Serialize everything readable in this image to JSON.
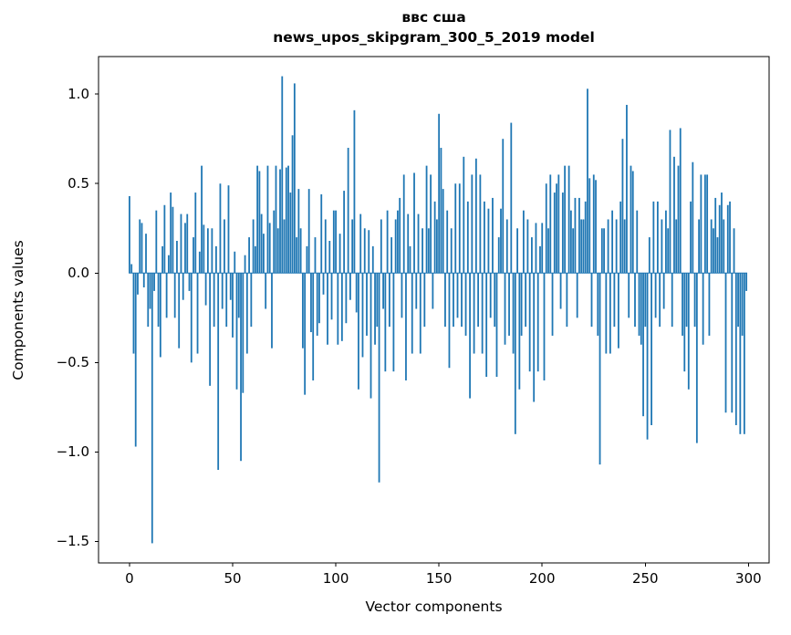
{
  "figure": {
    "title_line1": "ввс сша",
    "title_line2": "news_upos_skipgram_300_5_2019 model",
    "xlabel": "Vector components",
    "ylabel": "Components values"
  },
  "chart_data": {
    "type": "bar",
    "title": "ввс сша — news_upos_skipgram_300_5_2019 model",
    "xlabel": "Vector components",
    "ylabel": "Components values",
    "bar_color": "#1f77b4",
    "axis_color": "#000000",
    "xlim": [
      -15,
      310
    ],
    "ylim": [
      -1.62,
      1.21
    ],
    "x_ticks": [
      0,
      50,
      100,
      150,
      200,
      250,
      300
    ],
    "y_ticks": [
      1.0,
      0.5,
      0.0,
      -0.5,
      -1.0,
      -1.5
    ],
    "grid": false,
    "legend": false,
    "zero_line": true,
    "n_components": 300,
    "values": [
      0.43,
      0.05,
      -0.45,
      -0.97,
      -0.12,
      0.3,
      0.28,
      -0.08,
      0.22,
      -0.3,
      -0.2,
      -1.51,
      -0.1,
      0.35,
      -0.3,
      -0.47,
      0.15,
      0.38,
      -0.25,
      0.1,
      0.45,
      0.37,
      -0.25,
      0.18,
      -0.42,
      0.33,
      -0.15,
      0.28,
      0.33,
      -0.1,
      -0.5,
      0.2,
      0.45,
      -0.45,
      0.12,
      0.6,
      0.27,
      -0.18,
      0.25,
      -0.63,
      0.25,
      -0.3,
      0.15,
      -1.1,
      0.5,
      -0.2,
      0.3,
      -0.3,
      0.49,
      -0.15,
      -0.36,
      0.12,
      -0.65,
      -0.25,
      -1.05,
      -0.67,
      0.1,
      -0.45,
      0.2,
      -0.3,
      0.3,
      0.15,
      0.6,
      0.57,
      0.33,
      0.22,
      -0.2,
      0.6,
      0.28,
      -0.42,
      0.35,
      0.6,
      0.25,
      0.58,
      1.1,
      0.3,
      0.59,
      0.6,
      0.45,
      0.77,
      1.06,
      0.2,
      0.47,
      0.25,
      -0.42,
      -0.68,
      0.15,
      0.47,
      -0.33,
      -0.6,
      0.2,
      -0.35,
      -0.28,
      0.44,
      -0.12,
      0.3,
      -0.4,
      0.18,
      -0.26,
      0.35,
      0.35,
      -0.4,
      0.22,
      -0.38,
      0.46,
      -0.28,
      0.7,
      -0.15,
      0.3,
      0.91,
      -0.22,
      -0.65,
      0.33,
      -0.47,
      0.25,
      -0.35,
      0.24,
      -0.7,
      0.15,
      -0.4,
      -0.3,
      -1.17,
      0.3,
      -0.2,
      -0.55,
      0.35,
      -0.3,
      0.2,
      -0.55,
      0.3,
      0.35,
      0.42,
      -0.25,
      0.55,
      -0.6,
      0.33,
      0.15,
      -0.45,
      0.56,
      -0.2,
      0.33,
      -0.45,
      0.25,
      -0.3,
      0.6,
      0.25,
      0.55,
      -0.2,
      0.4,
      0.3,
      0.89,
      0.7,
      0.47,
      -0.3,
      0.35,
      -0.53,
      0.25,
      -0.3,
      0.5,
      -0.25,
      0.5,
      -0.3,
      0.65,
      -0.35,
      0.4,
      -0.7,
      0.55,
      -0.45,
      0.64,
      -0.3,
      0.55,
      -0.45,
      0.4,
      -0.58,
      0.36,
      -0.25,
      0.42,
      -0.3,
      -0.58,
      0.2,
      0.36,
      0.75,
      -0.4,
      0.3,
      -0.35,
      0.84,
      -0.45,
      -0.9,
      0.25,
      -0.65,
      -0.35,
      0.35,
      -0.3,
      0.3,
      -0.55,
      0.2,
      -0.72,
      0.28,
      -0.55,
      0.15,
      0.28,
      -0.6,
      0.5,
      0.25,
      0.55,
      -0.35,
      0.45,
      0.5,
      0.55,
      -0.2,
      0.45,
      0.6,
      -0.3,
      0.6,
      0.35,
      0.25,
      0.42,
      -0.25,
      0.42,
      0.3,
      0.3,
      0.4,
      1.03,
      0.53,
      -0.3,
      0.55,
      0.52,
      -0.35,
      -1.07,
      0.25,
      0.25,
      -0.45,
      0.3,
      -0.45,
      0.35,
      -0.3,
      0.3,
      -0.42,
      0.4,
      0.75,
      0.3,
      0.94,
      -0.25,
      0.6,
      0.57,
      -0.3,
      0.35,
      -0.35,
      -0.4,
      -0.8,
      -0.3,
      -0.93,
      0.2,
      -0.85,
      0.4,
      -0.25,
      0.4,
      -0.3,
      0.3,
      -0.2,
      0.35,
      0.25,
      0.8,
      -0.3,
      0.65,
      0.3,
      0.6,
      0.81,
      -0.35,
      -0.55,
      -0.3,
      -0.65,
      0.4,
      0.62,
      -0.3,
      -0.95,
      0.3,
      0.55,
      -0.4,
      0.55,
      0.55,
      -0.35,
      0.3,
      0.25,
      0.42,
      0.2,
      0.38,
      0.45,
      0.3,
      -0.78,
      0.38,
      0.4,
      -0.78,
      0.25,
      -0.85,
      -0.3,
      -0.9,
      -0.35,
      -0.9,
      -0.1
    ]
  }
}
